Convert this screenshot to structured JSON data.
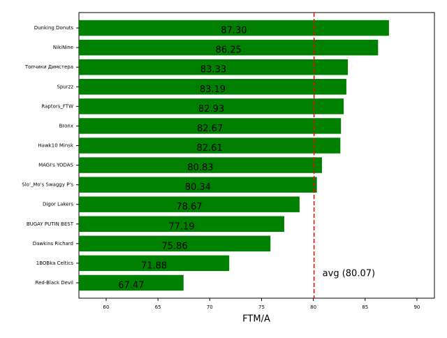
{
  "chart_data": {
    "type": "barh",
    "xlabel": "FTM/A",
    "categories": [
      "Dunking Donuts",
      "NikiNine",
      "Топчики Димстера",
      "Spurzz",
      "Raptors_FTW",
      "Bronx",
      "Hawk10 Minsk",
      "MAGI's YODAS",
      "Slo'_Mo's Swaggy P's",
      "Digor Lakers",
      "BUGAY PUTIN BEST",
      "Dawkins Richard",
      "1BOBka Celtics",
      "Red-Black Devil"
    ],
    "values": [
      87.3,
      86.25,
      83.33,
      83.19,
      82.93,
      82.67,
      82.61,
      80.83,
      80.34,
      78.67,
      77.19,
      75.86,
      71.88,
      67.47
    ],
    "value_labels": [
      "87.30",
      "86.25",
      "83.33",
      "83.19",
      "82.93",
      "82.67",
      "82.61",
      "80.83",
      "80.34",
      "78.67",
      "77.19",
      "75.86",
      "71.88",
      "67.47"
    ],
    "color": "#008000",
    "xlim": [
      57.37,
      91.69
    ],
    "xticks": [
      60,
      65,
      70,
      75,
      80,
      85,
      90
    ],
    "avg_line": {
      "value": 80.07,
      "label": "avg (80.07)",
      "color": "#ff0000"
    }
  }
}
